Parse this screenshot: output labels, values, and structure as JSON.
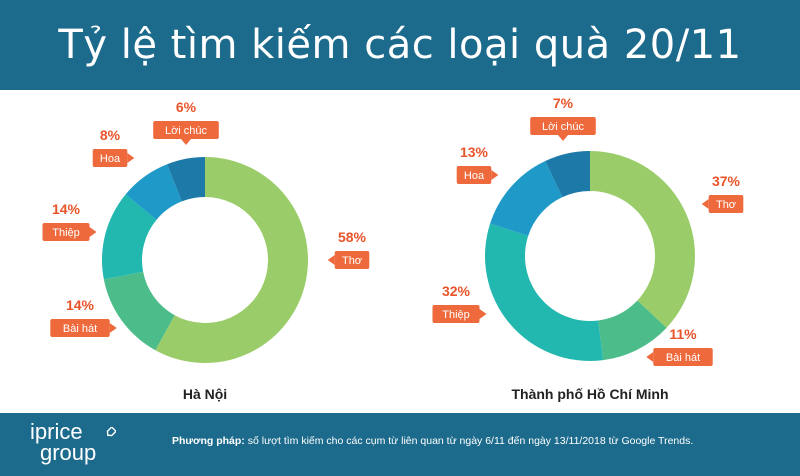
{
  "title": "Tỷ lệ tìm kiếm các loại quà 20/11",
  "colors": {
    "header_bg": "#1d6b8c",
    "callout": "#ee6a3d",
    "pct_text": "#e8542a"
  },
  "chart_data": [
    {
      "type": "donut",
      "title": "Hà Nội",
      "slices": [
        {
          "label": "Thơ",
          "value": 58,
          "pct_label": "58%",
          "color": "#9acd6a"
        },
        {
          "label": "Bài hát",
          "value": 14,
          "pct_label": "14%",
          "color": "#4cbd8a"
        },
        {
          "label": "Thiệp",
          "value": 14,
          "pct_label": "14%",
          "color": "#22b8b0"
        },
        {
          "label": "Hoa",
          "value": 8,
          "pct_label": "8%",
          "color": "#1f99c7"
        },
        {
          "label": "Lời chúc",
          "value": 6,
          "pct_label": "6%",
          "color": "#1d7aa8"
        }
      ]
    },
    {
      "type": "donut",
      "title": "Thành phố Hồ Chí Minh",
      "slices": [
        {
          "label": "Thơ",
          "value": 37,
          "pct_label": "37%",
          "color": "#9acd6a"
        },
        {
          "label": "Bài hát",
          "value": 11,
          "pct_label": "11%",
          "color": "#4cbd8a"
        },
        {
          "label": "Thiệp",
          "value": 32,
          "pct_label": "32%",
          "color": "#22b8b0"
        },
        {
          "label": "Hoa",
          "value": 13,
          "pct_label": "13%",
          "color": "#1f99c7"
        },
        {
          "label": "Lời chúc",
          "value": 7,
          "pct_label": "7%",
          "color": "#1d7aa8"
        }
      ]
    }
  ],
  "footer": {
    "logo_line1": "iprice",
    "logo_line2": "group",
    "method_label": "Phương pháp:",
    "method_text": "số lượt tìm kiếm cho các cụm từ liên quan từ ngày 6/11 đến ngày 13/11/2018 từ Google Trends."
  }
}
